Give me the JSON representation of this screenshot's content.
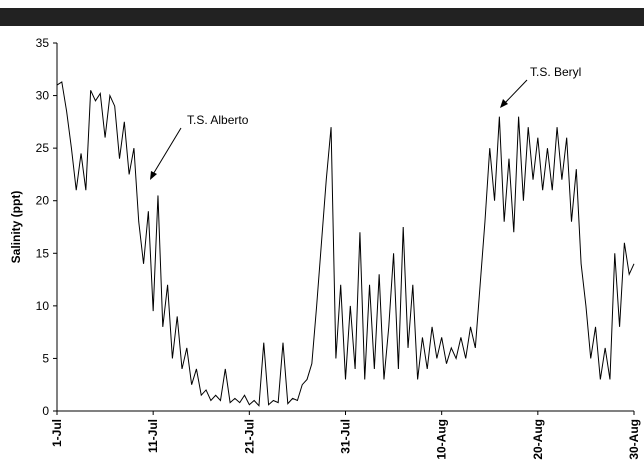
{
  "chart_data": {
    "type": "line",
    "y_label": "Salinity (ppt)",
    "annotations": [
      "T.S. Alberto",
      "T.S. Beryl"
    ],
    "x": [
      0,
      0.5,
      1,
      1.5,
      2,
      2.5,
      3,
      3.5,
      4,
      4.5,
      5,
      5.5,
      6,
      6.5,
      7,
      7.5,
      8,
      8.5,
      9,
      9.5,
      10,
      10.5,
      11,
      11.5,
      12,
      12.5,
      13,
      13.5,
      14,
      14.5,
      15,
      15.5,
      16,
      16.5,
      17,
      17.5,
      18,
      18.5,
      19,
      19.5,
      20,
      20.5,
      21,
      21.5,
      22,
      22.5,
      23,
      23.5,
      24,
      24.5,
      25,
      25.5,
      26,
      26.5,
      27,
      27.5,
      28,
      28.5,
      29,
      29.5,
      30,
      30.5,
      31,
      31.5,
      32,
      32.5,
      33,
      33.5,
      34,
      34.5,
      35,
      35.5,
      36,
      36.5,
      37,
      37.5,
      38,
      38.5,
      39,
      39.5,
      40,
      40.5,
      41,
      41.5,
      42,
      42.5,
      43,
      43.5,
      44,
      44.5,
      45,
      45.5,
      46,
      46.5,
      47,
      47.5,
      48,
      48.5,
      49,
      49.5,
      50,
      50.5,
      51,
      51.5,
      52,
      52.5,
      53,
      53.5,
      54,
      54.5,
      55,
      55.5,
      56,
      56.5,
      57,
      57.5,
      58,
      58.5,
      59,
      59.5,
      60
    ],
    "series": [
      {
        "color": "#000000",
        "values": [
          31,
          31.3,
          28.5,
          25,
          21,
          24.5,
          21,
          30.5,
          29.5,
          30.2,
          26,
          30,
          29,
          24,
          27.5,
          22.5,
          25,
          18,
          14,
          19,
          9.5,
          20.5,
          8,
          12,
          5,
          9,
          4,
          6,
          2.5,
          4,
          1.5,
          2,
          1,
          1.5,
          1,
          4,
          0.8,
          1.2,
          0.8,
          1.5,
          0.6,
          1,
          0.5,
          6.5,
          0.6,
          1,
          0.8,
          6.5,
          0.7,
          1.2,
          1,
          2.5,
          3,
          4.5,
          10,
          16,
          22,
          27,
          5,
          12,
          3,
          10,
          4,
          17,
          3,
          12,
          4,
          13,
          3,
          8,
          15,
          4,
          17.5,
          6,
          12,
          3,
          7,
          4,
          8,
          5,
          7,
          4.5,
          6,
          5,
          7,
          5,
          8,
          6,
          12,
          18,
          25,
          20,
          28,
          18,
          24,
          17,
          28,
          20,
          27,
          22,
          26,
          21,
          25,
          21,
          27,
          22,
          26,
          18,
          23,
          14,
          10,
          5,
          8,
          3,
          6,
          3,
          15,
          8,
          16,
          13,
          14
        ]
      }
    ],
    "xlim": [
      0,
      60
    ],
    "xticks": [
      {
        "value": 0,
        "label": "1-Jul"
      },
      {
        "value": 10,
        "label": "11-Jul"
      },
      {
        "value": 20,
        "label": "21-Jul"
      },
      {
        "value": 30,
        "label": "31-Jul"
      },
      {
        "value": 40,
        "label": "10-Aug"
      },
      {
        "value": 50,
        "label": "20-Aug"
      },
      {
        "value": 60,
        "label": "30-Aug"
      }
    ],
    "ylim": [
      0,
      35
    ],
    "yticks": [
      0,
      5,
      10,
      15,
      20,
      25,
      30,
      35
    ]
  }
}
